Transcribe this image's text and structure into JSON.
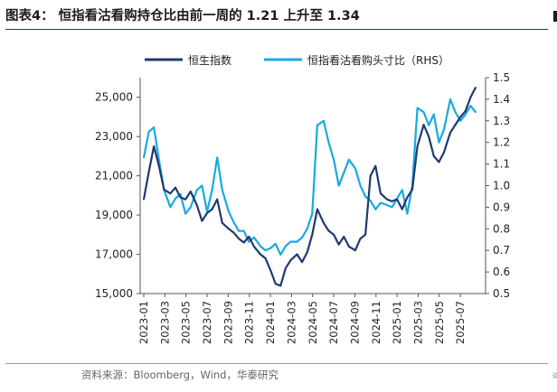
{
  "figure": {
    "title": "图表4：  恒指看沽看购持仓比由前一周的 1.21 上升至 1.34",
    "source": "资料来源：Bloomberg，Wind，华泰研究",
    "edge_glyph": "资"
  },
  "colors": {
    "hsi": "#1f3a6e",
    "ratio": "#18a9e1"
  },
  "chart_data": {
    "type": "line",
    "title": "恒指看沽看购持仓比由前一周的 1.21 上升至 1.34",
    "xlabel": "",
    "ylabel": "",
    "y2label": "RHS",
    "legend_position": "top",
    "x_ticks": [
      "2023-01",
      "2023-03",
      "2023-05",
      "2023-07",
      "2023-09",
      "2023-11",
      "2024-01",
      "2024-03",
      "2024-05",
      "2024-07",
      "2024-09",
      "2024-11",
      "2025-01",
      "2025-03",
      "2025-05",
      "2025-07"
    ],
    "y_left": {
      "min": 15000,
      "max": 26000,
      "ticks": [
        "15,000",
        "17,000",
        "19,000",
        "21,000",
        "23,000",
        "25,000"
      ],
      "tick_values": [
        15000,
        17000,
        19000,
        21000,
        23000,
        25000
      ]
    },
    "y_right": {
      "min": 0.5,
      "max": 1.5,
      "ticks": [
        "0.5",
        "0.6",
        "0.7",
        "0.8",
        "0.9",
        "1.0",
        "1.1",
        "1.2",
        "1.3",
        "1.4",
        "1.5"
      ],
      "tick_values": [
        0.5,
        0.6,
        0.7,
        0.8,
        0.9,
        1.0,
        1.1,
        1.2,
        1.3,
        1.4,
        1.5
      ]
    },
    "series": [
      {
        "name": "恒生指数",
        "axis": "left",
        "color": "#1f3a6e",
        "x": [
          2023.0,
          2023.04,
          2023.08,
          2023.12,
          2023.16,
          2023.21,
          2023.25,
          2023.29,
          2023.33,
          2023.37,
          2023.42,
          2023.46,
          2023.5,
          2023.54,
          2023.58,
          2023.62,
          2023.67,
          2023.71,
          2023.75,
          2023.79,
          2023.83,
          2023.87,
          2023.92,
          2023.96,
          2024.0,
          2024.04,
          2024.08,
          2024.12,
          2024.16,
          2024.21,
          2024.25,
          2024.29,
          2024.33,
          2024.37,
          2024.42,
          2024.46,
          2024.5,
          2024.54,
          2024.58,
          2024.62,
          2024.67,
          2024.71,
          2024.75,
          2024.79,
          2024.83,
          2024.87,
          2024.92,
          2024.96,
          2025.0,
          2025.04,
          2025.08,
          2025.12,
          2025.16,
          2025.21,
          2025.25,
          2025.29,
          2025.33,
          2025.37,
          2025.42,
          2025.46,
          2025.5,
          2025.54,
          2025.58,
          2025.62
        ],
        "values": [
          19800,
          21200,
          22500,
          21500,
          20300,
          20100,
          20400,
          19900,
          19800,
          20200,
          19500,
          18700,
          19100,
          19300,
          19800,
          18600,
          18300,
          18100,
          17800,
          17600,
          17900,
          17400,
          17000,
          16800,
          16200,
          15500,
          15400,
          16300,
          16700,
          17000,
          16600,
          17100,
          18000,
          19300,
          18600,
          18200,
          18000,
          17500,
          17900,
          17400,
          17200,
          17800,
          18000,
          21000,
          21500,
          20100,
          19800,
          19700,
          19800,
          19300,
          19900,
          20300,
          22500,
          23600,
          23000,
          22000,
          21700,
          22200,
          23200,
          23600,
          24000,
          24300,
          25000,
          25500
        ]
      },
      {
        "name": "恒指看沽看购头寸比（RHS）",
        "axis": "right",
        "color": "#18a9e1",
        "x": [
          2023.0,
          2023.04,
          2023.08,
          2023.12,
          2023.16,
          2023.21,
          2023.25,
          2023.29,
          2023.33,
          2023.37,
          2023.42,
          2023.46,
          2023.5,
          2023.54,
          2023.58,
          2023.62,
          2023.67,
          2023.71,
          2023.75,
          2023.79,
          2023.83,
          2023.87,
          2023.92,
          2023.96,
          2024.0,
          2024.04,
          2024.08,
          2024.12,
          2024.16,
          2024.21,
          2024.25,
          2024.29,
          2024.33,
          2024.37,
          2024.42,
          2024.46,
          2024.5,
          2024.54,
          2024.58,
          2024.62,
          2024.67,
          2024.71,
          2024.75,
          2024.79,
          2024.83,
          2024.87,
          2024.92,
          2024.96,
          2025.0,
          2025.04,
          2025.08,
          2025.12,
          2025.16,
          2025.21,
          2025.25,
          2025.29,
          2025.33,
          2025.37,
          2025.42,
          2025.46,
          2025.5,
          2025.54,
          2025.58,
          2025.62
        ],
        "values": [
          1.13,
          1.25,
          1.27,
          1.12,
          0.98,
          0.9,
          0.94,
          0.96,
          0.87,
          0.9,
          0.98,
          1.0,
          0.88,
          0.98,
          1.13,
          0.98,
          0.88,
          0.83,
          0.79,
          0.79,
          0.74,
          0.76,
          0.72,
          0.7,
          0.71,
          0.73,
          0.68,
          0.72,
          0.74,
          0.74,
          0.76,
          0.8,
          0.87,
          1.28,
          1.3,
          1.2,
          1.12,
          1.0,
          1.06,
          1.12,
          1.08,
          1.0,
          0.95,
          0.93,
          0.89,
          0.92,
          0.91,
          0.9,
          0.94,
          0.98,
          0.87,
          1.0,
          1.36,
          1.34,
          1.28,
          1.33,
          1.2,
          1.26,
          1.4,
          1.34,
          1.3,
          1.33,
          1.37,
          1.34
        ]
      }
    ]
  }
}
